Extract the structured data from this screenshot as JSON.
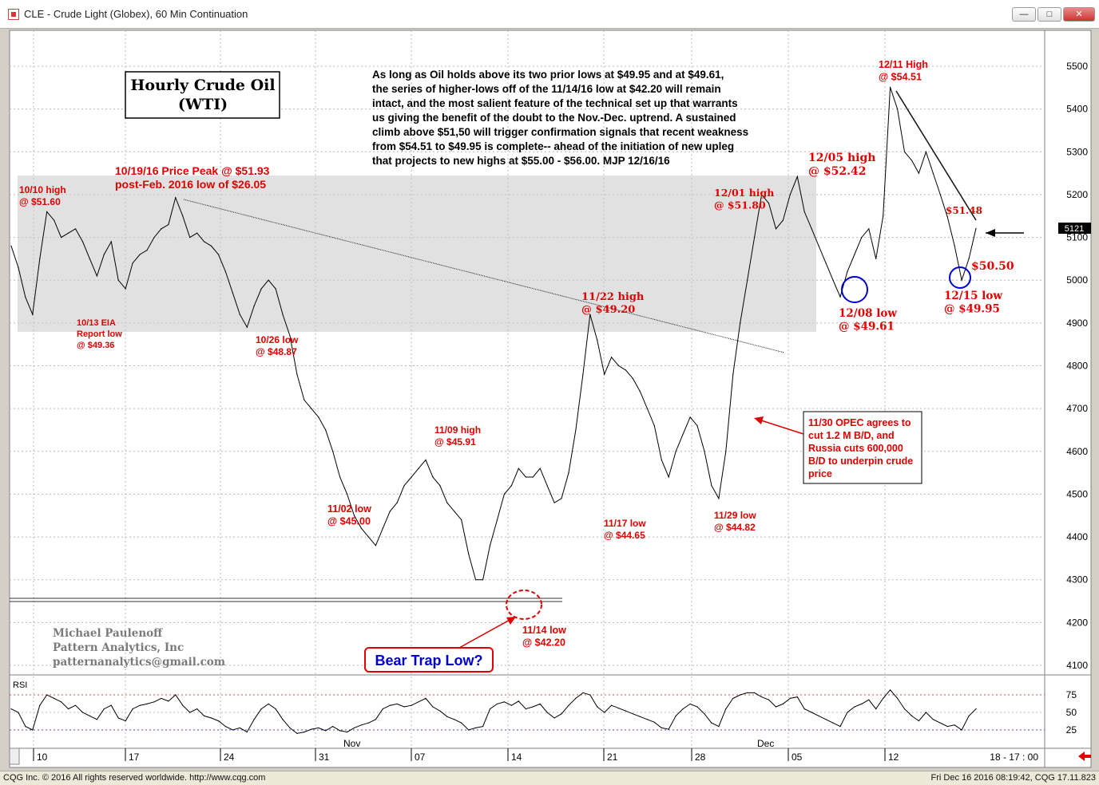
{
  "window": {
    "title": "CLE - Crude Light (Globex), 60 Min Continuation",
    "buttons": {
      "minimize": "—",
      "maximize": "□",
      "close": "✕"
    }
  },
  "status": {
    "left": "CQG Inc. © 2016 All rights reserved worldwide. http://www.cqg.com",
    "right": "Fri Dec 16 2016 08:19:42, CQG 17.11.823"
  },
  "chart_data": [
    {
      "type": "line",
      "title": "Hourly Crude Oil (WTI)",
      "y_ticks": [
        4100,
        4200,
        4300,
        4400,
        4500,
        4600,
        4700,
        4800,
        4900,
        5000,
        5100,
        5200,
        5300,
        5400,
        5500
      ],
      "ylim": [
        4050,
        5550
      ],
      "last_value_label": "5121",
      "x_ticks": [
        "10",
        "17",
        "24",
        "31",
        "07",
        "14",
        "21",
        "28",
        "05",
        "12"
      ],
      "x_month_labels": [
        "Nov",
        "Dec"
      ],
      "x_end_label": "18 - 17 : 00",
      "commentary": [
        "As long as Oil holds above its two prior lows at $49.95 and at $49.61,",
        "the series of higher-lows off of the 11/14/16 low at $42.20 will remain",
        "intact, and the most salient feature of the technical set up that warrants",
        "us giving the benefit of the doubt to the Nov.-Dec. uptrend. A sustained",
        "climb above $51,50 will trigger confirmation signals that recent weakness",
        "from $54.51 to $49.95 is complete-- ahead of the initiation of new upleg",
        "that projects to new highs at $55.00 - $56.00. MJP 12/16/16"
      ],
      "annotations": [
        {
          "lines": [
            "10/10 high",
            "@ $51.60"
          ]
        },
        {
          "lines": [
            "10/19/16 Price Peak @ $51.93",
            "post-Feb. 2016 low of $26.05"
          ]
        },
        {
          "lines": [
            "10/13 EIA",
            "Report low",
            "@ $49.36"
          ]
        },
        {
          "lines": [
            "10/26 low",
            "@ $48.87"
          ]
        },
        {
          "lines": [
            "11/02 low",
            "@ $45.00"
          ]
        },
        {
          "lines": [
            "11/09 high",
            "@ $45.91"
          ]
        },
        {
          "lines": [
            "11/14 low",
            "@ $42.20"
          ]
        },
        {
          "lines": [
            "11/17 low",
            "@ $44.65"
          ]
        },
        {
          "lines": [
            "11/22 high",
            "@ $49.20"
          ]
        },
        {
          "lines": [
            "11/29 low",
            "@ $44.82"
          ]
        },
        {
          "lines": [
            "12/01 high",
            "@ $51.80"
          ]
        },
        {
          "lines": [
            "12/05 high",
            "@ $52.42"
          ]
        },
        {
          "lines": [
            "12/08 low",
            "@ $49.61"
          ]
        },
        {
          "lines": [
            "12/11 High",
            "@ $54.51"
          ]
        },
        {
          "lines": [
            "$51.48"
          ]
        },
        {
          "lines": [
            "$50.50"
          ]
        },
        {
          "lines": [
            "12/15 low",
            "@ $49.95"
          ]
        }
      ],
      "opec_note": [
        "11/30 OPEC agrees to",
        "cut 1.2 M B/D, and",
        "Russia cuts 600,000",
        "B/D to underpin crude",
        "price"
      ],
      "bear_trap": "Bear Trap Low?",
      "author": [
        "Michael Paulenoff",
        "Pattern Analytics, Inc",
        "patternanalytics@gmail.com"
      ],
      "series": [
        {
          "values": [
            5080,
            5030,
            4960,
            4920,
            5050,
            5160,
            5140,
            5100,
            5110,
            5120,
            5090,
            5050,
            5010,
            5060,
            5090,
            5000,
            4980,
            5040,
            5060,
            5070,
            5100,
            5120,
            5130,
            5193,
            5150,
            5100,
            5110,
            5090,
            5080,
            5060,
            5020,
            4970,
            4920,
            4890,
            4940,
            4980,
            5000,
            4980,
            4920,
            4870,
            4780,
            4720,
            4700,
            4680,
            4650,
            4600,
            4540,
            4500,
            4450,
            4420,
            4400,
            4380,
            4420,
            4460,
            4480,
            4520,
            4540,
            4560,
            4580,
            4540,
            4520,
            4480,
            4460,
            4440,
            4360,
            4300,
            4300,
            4380,
            4440,
            4500,
            4520,
            4560,
            4540,
            4540,
            4560,
            4520,
            4480,
            4490,
            4550,
            4650,
            4780,
            4920,
            4860,
            4780,
            4820,
            4800,
            4790,
            4770,
            4740,
            4700,
            4660,
            4580,
            4540,
            4600,
            4640,
            4680,
            4660,
            4600,
            4520,
            4490,
            4600,
            4780,
            4900,
            5000,
            5100,
            5200,
            5180,
            5120,
            5140,
            5200,
            5242,
            5160,
            5120,
            5080,
            5040,
            5000,
            4961,
            5020,
            5060,
            5100,
            5120,
            5050,
            5150,
            5451,
            5400,
            5300,
            5280,
            5250,
            5300,
            5250,
            5200,
            5148,
            5080,
            5000,
            5050,
            5121
          ]
        }
      ]
    },
    {
      "type": "line",
      "title": "RSI",
      "y_ticks": [
        25,
        50,
        75
      ],
      "ylim": [
        0,
        100
      ],
      "series": [
        {
          "values": [
            55,
            50,
            30,
            25,
            60,
            75,
            70,
            65,
            55,
            60,
            50,
            45,
            40,
            55,
            60,
            42,
            38,
            55,
            60,
            62,
            65,
            70,
            66,
            75,
            60,
            50,
            55,
            45,
            42,
            38,
            30,
            25,
            28,
            22,
            40,
            55,
            62,
            55,
            40,
            28,
            20,
            22,
            26,
            28,
            24,
            30,
            24,
            22,
            28,
            32,
            35,
            40,
            55,
            60,
            62,
            58,
            60,
            65,
            70,
            58,
            52,
            44,
            40,
            35,
            25,
            28,
            30,
            55,
            62,
            65,
            60,
            66,
            55,
            58,
            62,
            50,
            42,
            48,
            60,
            70,
            78,
            75,
            58,
            50,
            60,
            56,
            52,
            48,
            44,
            40,
            36,
            28,
            26,
            45,
            55,
            62,
            58,
            48,
            35,
            30,
            55,
            70,
            75,
            78,
            78,
            72,
            68,
            58,
            62,
            70,
            72,
            55,
            50,
            45,
            40,
            35,
            30,
            50,
            58,
            62,
            68,
            55,
            70,
            82,
            70,
            55,
            45,
            38,
            50,
            40,
            35,
            30,
            32,
            25,
            45,
            55
          ]
        }
      ]
    }
  ]
}
